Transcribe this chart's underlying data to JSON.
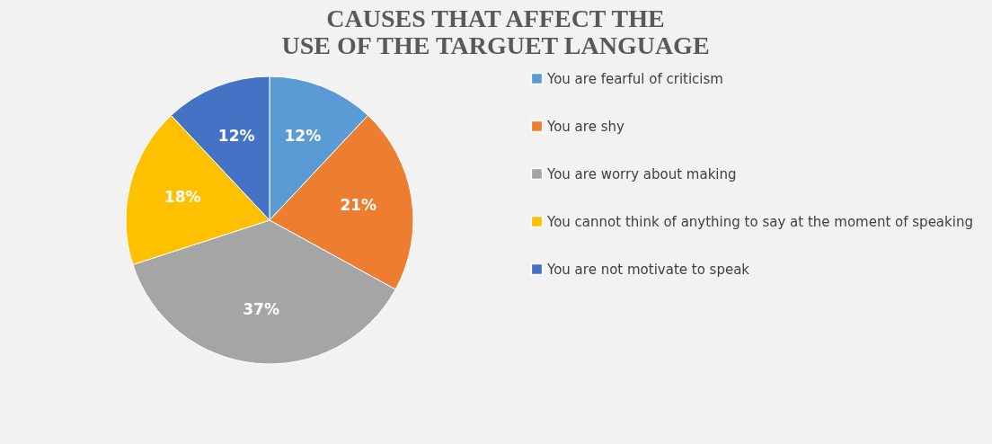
{
  "chart_data": {
    "type": "pie",
    "title": "CAUSES THAT AFFECT THE USE OF THE TARGUET LANGUAGE",
    "categories": [
      "You are fearful of criticism",
      "You are shy",
      "You are worry about making",
      "You cannot think of anything to say at the moment of speaking",
      "You are not motivate to speak"
    ],
    "values": [
      12,
      21,
      37,
      18,
      12
    ],
    "value_labels": [
      "12%",
      "21%",
      "37%",
      "18%",
      "12%"
    ],
    "colors": [
      "#5b9bd5",
      "#ed7d31",
      "#a5a5a5",
      "#ffc000",
      "#4472c4"
    ],
    "legend": "right"
  }
}
